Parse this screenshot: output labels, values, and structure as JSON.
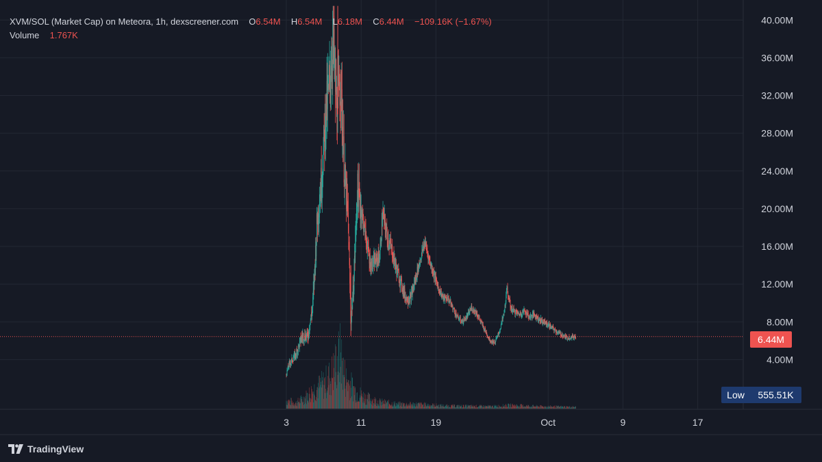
{
  "legend": {
    "title": "XVM/SOL (Market Cap) on Meteora, 1h, dexscreener.com",
    "o_label": "O",
    "o_value": "6.54M",
    "h_label": "H",
    "h_value": "6.54M",
    "l_label": "L",
    "l_value": "6.18M",
    "c_label": "C",
    "c_value": "6.44M",
    "change": "−109.16K (−1.67%)",
    "volume_label": "Volume",
    "volume_value": "1.767K"
  },
  "price_tag": "6.44M",
  "low_tag": {
    "label": "Low",
    "value": "555.51K"
  },
  "branding": "TradingView",
  "colors": {
    "up": "#26a69a",
    "down": "#ef5350",
    "background": "#161a25",
    "grid": "#232834",
    "text": "#d1d4dc",
    "low_badge": "#1e3a6e"
  },
  "chart_data": {
    "type": "candlestick",
    "title": "XVM/SOL (Market Cap) on Meteora, 1h, dexscreener.com",
    "y_unit": "market cap (USD)",
    "ylim": [
      0,
      41.5
    ],
    "y_ticks": [
      {
        "value": 4,
        "label": "4.00M"
      },
      {
        "value": 8,
        "label": "8.00M"
      },
      {
        "value": 12,
        "label": "12.00M"
      },
      {
        "value": 16,
        "label": "16.00M"
      },
      {
        "value": 20,
        "label": "20.00M"
      },
      {
        "value": 24,
        "label": "24.00M"
      },
      {
        "value": 28,
        "label": "28.00M"
      },
      {
        "value": 32,
        "label": "32.00M"
      },
      {
        "value": 36,
        "label": "36.00M"
      },
      {
        "value": 40,
        "label": "40.00M"
      }
    ],
    "x_ticks": [
      {
        "day": 3,
        "label": "3"
      },
      {
        "day": 11,
        "label": "11"
      },
      {
        "day": 19,
        "label": "19"
      },
      {
        "day": 31,
        "label": "Oct"
      },
      {
        "day": 39,
        "label": "9"
      },
      {
        "day": 47,
        "label": "17"
      }
    ],
    "xlim": [
      3,
      51
    ],
    "price_path": [
      [
        3.0,
        2.5
      ],
      [
        3.3,
        3.5
      ],
      [
        4.0,
        4.5
      ],
      [
        4.7,
        6.5
      ],
      [
        5.3,
        6.5
      ],
      [
        5.8,
        9.5
      ],
      [
        6.0,
        13.0
      ],
      [
        6.3,
        19.0
      ],
      [
        6.6,
        21.5
      ],
      [
        6.9,
        25.0
      ],
      [
        7.2,
        30.0
      ],
      [
        7.6,
        33.0
      ],
      [
        8.0,
        38.0
      ],
      [
        8.4,
        30.0
      ],
      [
        8.8,
        34.0
      ],
      [
        9.2,
        24.0
      ],
      [
        9.6,
        19.0
      ],
      [
        9.9,
        8.0
      ],
      [
        10.2,
        12.0
      ],
      [
        10.6,
        22.0
      ],
      [
        11.0,
        20.0
      ],
      [
        11.5,
        17.0
      ],
      [
        12.0,
        14.0
      ],
      [
        12.6,
        14.5
      ],
      [
        13.0,
        15.0
      ],
      [
        13.3,
        19.5
      ],
      [
        13.8,
        17.0
      ],
      [
        14.3,
        15.5
      ],
      [
        14.8,
        13.5
      ],
      [
        15.3,
        12.0
      ],
      [
        15.8,
        10.5
      ],
      [
        16.3,
        10.5
      ],
      [
        16.8,
        12.5
      ],
      [
        17.3,
        14.5
      ],
      [
        17.8,
        16.5
      ],
      [
        18.3,
        14.5
      ],
      [
        18.8,
        13.0
      ],
      [
        19.3,
        11.5
      ],
      [
        19.8,
        10.5
      ],
      [
        20.3,
        10.5
      ],
      [
        20.8,
        9.5
      ],
      [
        21.3,
        8.5
      ],
      [
        21.8,
        8.0
      ],
      [
        22.3,
        8.5
      ],
      [
        22.8,
        9.5
      ],
      [
        23.3,
        9.0
      ],
      [
        23.8,
        8.0
      ],
      [
        24.3,
        7.0
      ],
      [
        24.8,
        6.0
      ],
      [
        25.3,
        5.8
      ],
      [
        25.8,
        7.0
      ],
      [
        26.3,
        9.0
      ],
      [
        26.6,
        11.5
      ],
      [
        27.0,
        9.5
      ],
      [
        27.5,
        9.0
      ],
      [
        28.0,
        8.8
      ],
      [
        28.5,
        9.2
      ],
      [
        29.0,
        8.5
      ],
      [
        29.5,
        8.8
      ],
      [
        30.0,
        8.3
      ],
      [
        30.5,
        8.0
      ],
      [
        31.0,
        7.7
      ],
      [
        31.5,
        7.3
      ],
      [
        32.0,
        6.9
      ],
      [
        32.5,
        6.6
      ],
      [
        33.0,
        6.3
      ],
      [
        33.5,
        6.4
      ],
      [
        34.0,
        6.44
      ]
    ],
    "extremes": {
      "peak_high": 41.5,
      "post_peak_low": 6.5,
      "volume_spike_day": 8.6
    },
    "volume_path": [
      [
        3.0,
        0.15
      ],
      [
        4.0,
        0.1
      ],
      [
        5.0,
        0.2
      ],
      [
        6.0,
        0.35
      ],
      [
        7.0,
        0.45
      ],
      [
        7.8,
        0.6
      ],
      [
        8.4,
        0.85
      ],
      [
        8.8,
        1.0
      ],
      [
        9.3,
        0.55
      ],
      [
        9.8,
        0.45
      ],
      [
        10.5,
        0.3
      ],
      [
        11.5,
        0.2
      ],
      [
        13.0,
        0.12
      ],
      [
        15.0,
        0.08
      ],
      [
        17.0,
        0.08
      ],
      [
        20.0,
        0.05
      ],
      [
        25.0,
        0.04
      ],
      [
        27.0,
        0.06
      ],
      [
        30.0,
        0.04
      ],
      [
        34.0,
        0.03
      ]
    ]
  }
}
